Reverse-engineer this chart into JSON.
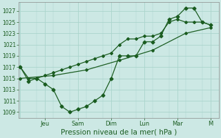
{
  "bg_color": "#cce8e4",
  "grid_color": "#aad4cc",
  "line_color": "#1a5c20",
  "xlabel": "Pression niveau de la mer( hPa )",
  "xlabel_fontsize": 7.5,
  "ytick_labels": [
    "1009",
    "1011",
    "1013",
    "1015",
    "1017",
    "1019",
    "1021",
    "1023",
    "1025",
    "1027"
  ],
  "ytick_vals": [
    1009,
    1011,
    1013,
    1015,
    1017,
    1019,
    1021,
    1023,
    1025,
    1027
  ],
  "ylim": [
    1008.0,
    1028.5
  ],
  "xlim": [
    -0.1,
    12.0
  ],
  "xtick_positions": [
    1.5,
    3.5,
    5.5,
    7.5,
    9.5,
    11.5
  ],
  "xtick_labels": [
    "Jeu",
    "Sam",
    "Dim",
    "Lun",
    "Mar",
    "M"
  ],
  "grid_x_positions": [
    0,
    1.5,
    3.5,
    5.5,
    7.5,
    9.5,
    11.5
  ],
  "series_wavy_x": [
    0,
    0.5,
    1.0,
    1.5,
    2.0,
    2.5,
    3.0,
    3.5,
    4.0,
    4.5,
    5.0,
    5.5,
    6.0,
    6.5,
    7.0,
    7.5,
    8.0,
    8.5,
    9.0,
    9.5,
    10.0,
    10.5,
    11.0,
    11.5
  ],
  "series_wavy_y": [
    1017,
    1014.5,
    1015,
    1014,
    1013,
    1010,
    1009,
    1009.5,
    1010,
    1011,
    1012,
    1015,
    1019,
    1019,
    1019,
    1021.5,
    1021.5,
    1022.5,
    1025.5,
    1026,
    1027.5,
    1027.5,
    1025,
    1024.5
  ],
  "series_smooth_x": [
    0,
    0.5,
    1.0,
    1.5,
    2.0,
    2.5,
    3.0,
    3.5,
    4.0,
    4.5,
    5.0,
    5.5,
    6.0,
    6.5,
    7.0,
    7.5,
    8.0,
    8.5,
    9.0,
    9.5,
    10.0,
    10.5,
    11.0,
    11.5
  ],
  "series_smooth_y": [
    1017,
    1015,
    1015,
    1015.5,
    1016,
    1016.5,
    1017,
    1017.5,
    1018,
    1018.5,
    1019,
    1019.5,
    1021,
    1022,
    1022,
    1022.5,
    1022.5,
    1023,
    1025,
    1025.5,
    1025,
    1025,
    1025,
    1024.5
  ],
  "series_trend_x": [
    0,
    2.0,
    4.0,
    6.0,
    8.0,
    10.0,
    11.5
  ],
  "series_trend_y": [
    1015,
    1015.5,
    1016.5,
    1018.2,
    1020.0,
    1023.0,
    1024.0
  ]
}
